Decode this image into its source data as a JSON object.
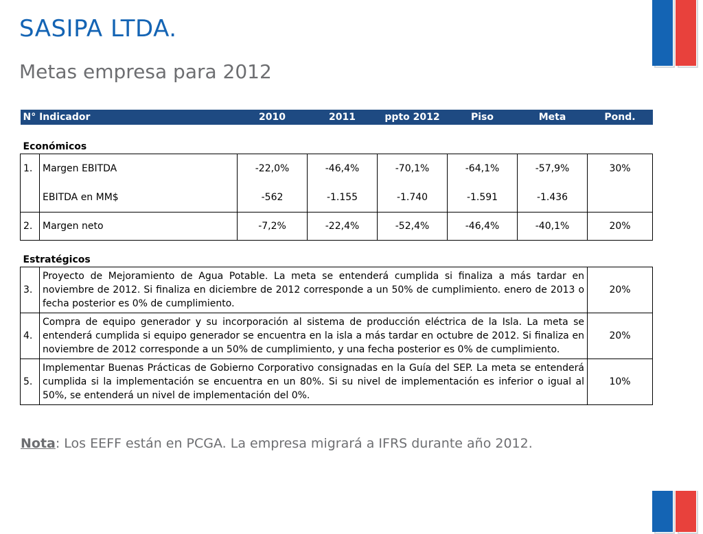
{
  "header": {
    "title": "SASIPA LTDA.",
    "subtitle": "Metas empresa para 2012"
  },
  "colors": {
    "accent_blue": "#1464b4",
    "header_bg": "#1e4a82",
    "flag_red": "#e8413c",
    "text_gray": "#6d6e71"
  },
  "table": {
    "columns": [
      "N° Indicador",
      "2010",
      "2011",
      "ppto 2012",
      "Piso",
      "Meta",
      "Pond."
    ],
    "sections": {
      "economicos": "Económicos",
      "estrategicos": "Estratégicos"
    },
    "economic_rows": [
      {
        "num": "1.",
        "name": "Margen EBITDA",
        "v2010": "-22,0%",
        "v2011": "-46,4%",
        "ppto": "-70,1%",
        "piso": "-64,1%",
        "meta": "-57,9%",
        "pond": "30%"
      },
      {
        "num": "",
        "name": "EBITDA en MM$",
        "v2010": "-562",
        "v2011": "-1.155",
        "ppto": "-1.740",
        "piso": "-1.591",
        "meta": "-1.436",
        "pond": ""
      },
      {
        "num": "2.",
        "name": "Margen neto",
        "v2010": "-7,2%",
        "v2011": "-22,4%",
        "ppto": "-52,4%",
        "piso": "-46,4%",
        "meta": "-40,1%",
        "pond": "20%"
      }
    ],
    "strategic_rows": [
      {
        "num": "3.",
        "desc": "Proyecto de Mejoramiento de Agua Potable. La meta se entenderá cumplida si finaliza a más tardar en noviembre de 2012. Si finaliza en diciembre de 2012 corresponde a un 50% de cumplimiento. enero de 2013 o fecha posterior es 0% de cumplimiento.",
        "pond": "20%"
      },
      {
        "num": "4.",
        "desc": "Compra de equipo generador y su incorporación al sistema de producción eléctrica de la Isla. La meta se entenderá cumplida si equipo generador se encuentra en la isla a más tardar en octubre de 2012. Si finaliza en noviembre de 2012 corresponde a un 50% de cumplimiento, y una fecha posterior es 0% de cumplimiento.",
        "pond": "20%"
      },
      {
        "num": "5.",
        "desc": "Implementar Buenas Prácticas de Gobierno Corporativo consignadas en la Guía del SEP. La meta se entenderá cumplida si la implementación se encuentra en un 80%. Si su nivel de implementación es inferior o igual  al 50%, se entenderá un nivel de implementación del 0%.",
        "pond": "10%"
      }
    ]
  },
  "note": {
    "label": "Nota",
    "text": ": Los EEFF están en PCGA. La empresa migrará a IFRS durante año 2012."
  }
}
